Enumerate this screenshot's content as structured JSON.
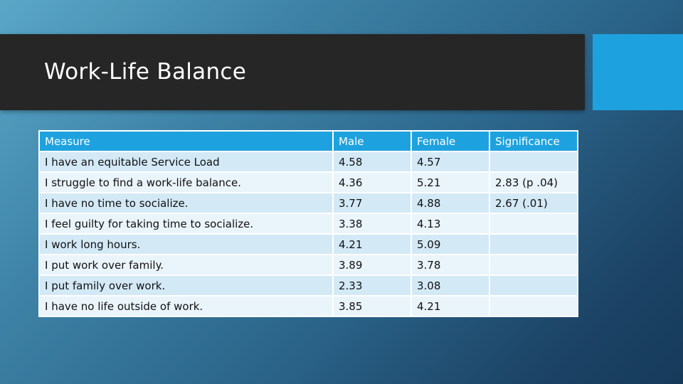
{
  "slide": {
    "title": "Work-Life Balance",
    "colors": {
      "title_bar": "#262626",
      "accent": "#1ea2df",
      "row_odd": "#d3e9f6",
      "row_even": "#eaf4fb"
    }
  },
  "table": {
    "headers": [
      "Measure",
      "Male",
      "Female",
      "Significance"
    ],
    "rows": [
      [
        "I have an equitable Service Load",
        "4.58",
        "4.57",
        ""
      ],
      [
        "I struggle to find a work-life balance.",
        "4.36",
        "5.21",
        "2.83 (p .04)"
      ],
      [
        "I have no time to socialize.",
        "3.77",
        "4.88",
        "2.67 (.01)"
      ],
      [
        "I feel guilty for taking time to socialize.",
        "3.38",
        "4.13",
        ""
      ],
      [
        "I work long hours.",
        "4.21",
        "5.09",
        ""
      ],
      [
        "I put work over family.",
        "3.89",
        "3.78",
        ""
      ],
      [
        "I put family over work.",
        "2.33",
        "3.08",
        ""
      ],
      [
        "I have no life outside of work.",
        "3.85",
        "4.21",
        ""
      ]
    ]
  }
}
